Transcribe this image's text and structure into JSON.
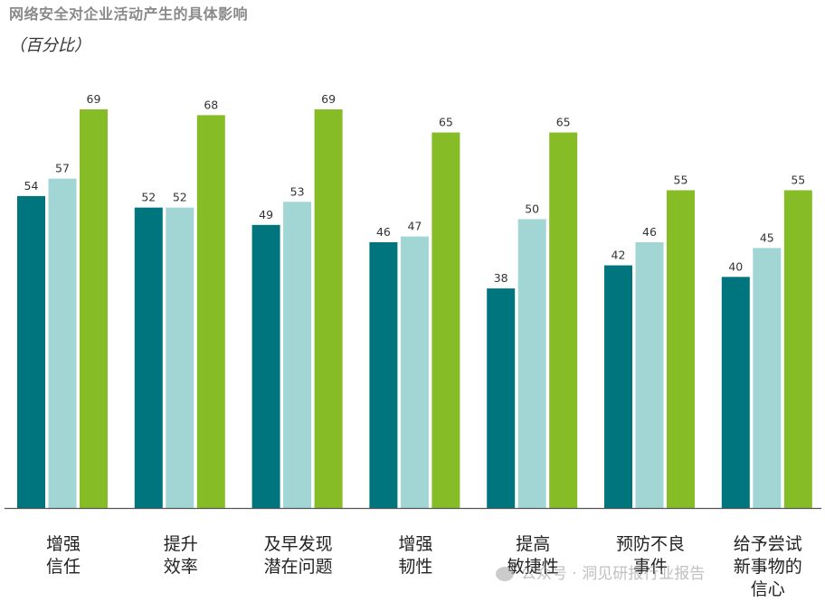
{
  "title": "网络安全对企业活动产生的具体影响",
  "subtitle": "（百分比）",
  "watermark": "公众号 · 洞见研报行业报告",
  "colors": {
    "series": [
      "#00757d",
      "#a1d6d4",
      "#86bc25"
    ],
    "baseline": "#555555",
    "label": "#333333"
  },
  "chart_data": {
    "type": "bar",
    "categories": [
      [
        "增强",
        "信任"
      ],
      [
        "提升",
        "效率"
      ],
      [
        "及早发现",
        "潜在问题"
      ],
      [
        "增强",
        "韧性"
      ],
      [
        "提高",
        "敏捷性"
      ],
      [
        "预防不良",
        "事件"
      ],
      [
        "给予尝试",
        "新事物的",
        "信心"
      ]
    ],
    "series": [
      {
        "values": [
          54,
          52,
          49,
          46,
          38,
          42,
          40
        ]
      },
      {
        "values": [
          57,
          52,
          53,
          47,
          50,
          46,
          45
        ]
      },
      {
        "values": [
          69,
          68,
          69,
          65,
          65,
          55,
          55
        ]
      }
    ],
    "ylim": [
      0,
      69
    ],
    "data_labels": true,
    "grid": false,
    "legend": "none"
  }
}
